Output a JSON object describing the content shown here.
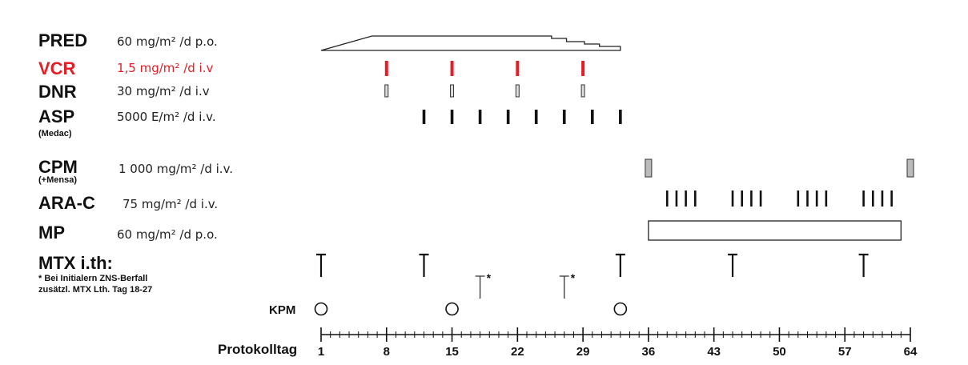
{
  "rows": {
    "pred": {
      "name": "PRED",
      "dose": "60 mg/m² /d p.o."
    },
    "vcr": {
      "name": "VCR",
      "dose": "1,5 mg/m² /d i.v",
      "color": "#e41e26"
    },
    "dnr": {
      "name": "DNR",
      "dose": "30 mg/m² /d i.v"
    },
    "asp": {
      "name": "ASP",
      "dose": "5000 E/m² /d i.v.",
      "sub": "(Medac)"
    },
    "cpm": {
      "name": "CPM",
      "dose": "1 000 mg/m² /d i.v.",
      "sub": "(+Mensa)"
    },
    "arac": {
      "name": "ARA-C",
      "dose": "75 mg/m² /d i.v."
    },
    "mp": {
      "name": "MP",
      "dose": "60 mg/m² /d p.o."
    },
    "mtx": {
      "name": "MTX i.th:",
      "note_line1": "* Bei Initialern ZNS-Berfall",
      "note_line2": "zusätzl. MTX Lth. Tag 18-27"
    }
  },
  "kpm_label": "KPM",
  "axis": {
    "label": "Protokolltag",
    "min_day": 1,
    "max_day": 64,
    "ticks": [
      "1",
      "8",
      "15",
      "22",
      "29",
      "36",
      "43",
      "50",
      "57",
      "64"
    ],
    "tick_days": [
      1,
      8,
      15,
      22,
      29,
      36,
      43,
      50,
      57,
      64
    ]
  },
  "schedule": {
    "pred_days": [
      1,
      33
    ],
    "vcr_days": [
      8,
      15,
      22,
      29
    ],
    "dnr_days": [
      8,
      15,
      22,
      29
    ],
    "asp_days": [
      12,
      15,
      18,
      21,
      24,
      27,
      30,
      33
    ],
    "cpm_days": [
      36,
      64
    ],
    "arac_days": [
      38,
      39,
      40,
      41,
      45,
      46,
      47,
      48,
      52,
      53,
      54,
      55,
      59,
      60,
      61,
      62
    ],
    "mp_days": [
      36,
      63
    ],
    "mtx_days": [
      1,
      12,
      33,
      45,
      59
    ],
    "mtx_cns_days": [
      18,
      27
    ],
    "kpm_days": [
      1,
      15,
      33
    ]
  }
}
